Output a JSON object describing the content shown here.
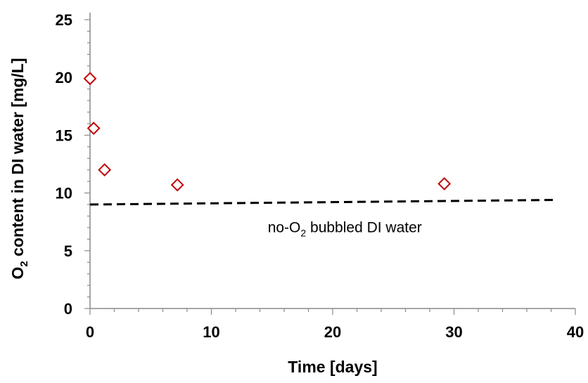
{
  "chart_data": {
    "type": "scatter",
    "xlabel": "Time [days]",
    "ylabel": {
      "prefix": "O",
      "sub": "2",
      "suffix": " content in DI water [mg/L]"
    },
    "xlim": [
      0,
      40
    ],
    "ylim": [
      0,
      25
    ],
    "xticks": [
      0,
      10,
      20,
      30,
      40
    ],
    "yticks": [
      0,
      5,
      10,
      15,
      20,
      25
    ],
    "grid": false,
    "legend": "none",
    "series": [
      {
        "marker": "diamond-open",
        "color": "#C00000",
        "x": [
          0.0,
          0.3,
          1.2,
          7.2,
          29.2
        ],
        "y": [
          19.9,
          15.6,
          12.0,
          10.7,
          10.8
        ]
      }
    ],
    "reference_line": {
      "style": "dashed",
      "color": "#000000",
      "x": [
        0,
        38.5
      ],
      "y": [
        9.0,
        9.4
      ]
    },
    "annotation": {
      "prefix": "no-O",
      "sub": "2",
      "suffix": " bubbled DI water",
      "at": {
        "x": 21,
        "y": 6.6
      }
    }
  }
}
